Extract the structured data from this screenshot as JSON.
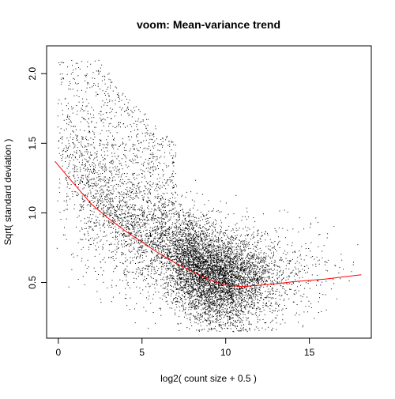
{
  "chart_data": {
    "type": "scatter",
    "title": "voom: Mean-variance trend",
    "xlabel": "log2( count size + 0.5 )",
    "ylabel": "Sqrt( standard deviation )",
    "xlim": [
      -0.7,
      18.7
    ],
    "ylim": [
      0.1,
      2.2
    ],
    "xticks": [
      0,
      5,
      10,
      15
    ],
    "yticks": [
      0.5,
      1.0,
      1.5,
      2.0
    ],
    "xtick_labels": [
      "0",
      "5",
      "10",
      "15"
    ],
    "ytick_labels": [
      "0.5",
      "1.0",
      "1.5",
      "2.0"
    ],
    "grid": false,
    "legend": "none",
    "series": [
      {
        "kind": "points",
        "color": "#000000",
        "marker": "dot",
        "approx_count": 9000,
        "x_range": [
          -0.1,
          18.2
        ],
        "y_range": [
          0.15,
          2.1
        ]
      },
      {
        "kind": "trend-line",
        "color": "#ff0000",
        "x": [
          -0.2,
          0.5,
          1,
          2,
          3,
          4,
          5,
          6,
          7,
          8,
          9,
          10,
          11,
          12,
          13,
          14,
          15,
          16,
          17,
          18.1
        ],
        "y": [
          1.37,
          1.27,
          1.2,
          1.06,
          0.96,
          0.87,
          0.79,
          0.71,
          0.64,
          0.58,
          0.52,
          0.48,
          0.47,
          0.48,
          0.49,
          0.505,
          0.515,
          0.525,
          0.54,
          0.555
        ]
      }
    ]
  }
}
